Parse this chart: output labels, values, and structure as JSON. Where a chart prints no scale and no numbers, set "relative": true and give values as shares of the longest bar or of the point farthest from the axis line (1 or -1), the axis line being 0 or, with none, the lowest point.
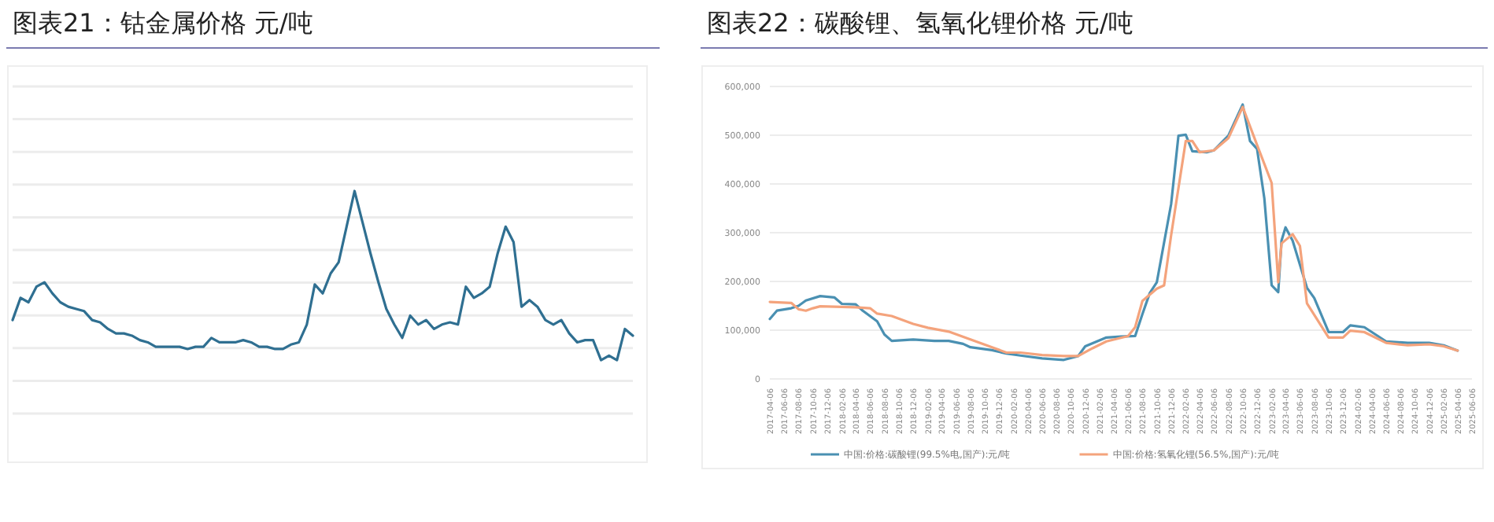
{
  "chart_data": [
    {
      "type": "line",
      "title": "图表21：钴金属价格 元/吨",
      "relative": true,
      "grid": true,
      "categories": [
        null,
        null,
        null,
        null,
        null,
        null,
        null,
        null,
        null,
        null,
        null,
        null,
        null,
        null,
        null,
        null,
        null,
        null,
        null,
        null,
        null,
        null,
        null,
        null,
        null,
        null,
        null,
        null,
        null,
        null,
        null,
        null,
        null,
        null,
        null,
        null,
        null,
        null,
        null,
        null,
        null,
        null,
        null,
        null,
        null,
        null,
        null,
        null,
        null,
        null,
        null,
        null,
        null,
        null,
        null,
        null,
        null,
        null,
        null,
        null,
        null,
        null,
        null,
        null,
        null,
        null,
        null,
        null,
        null,
        null,
        null,
        null,
        null,
        null,
        null,
        null,
        null,
        null,
        null
      ],
      "series": [
        {
          "color": "#2f6f91",
          "values": [
            0.42,
            0.52,
            0.5,
            0.57,
            0.59,
            0.54,
            0.5,
            0.48,
            0.47,
            0.46,
            0.42,
            0.41,
            0.38,
            0.36,
            0.36,
            0.35,
            0.33,
            0.32,
            0.3,
            0.3,
            0.3,
            0.3,
            0.29,
            0.3,
            0.3,
            0.34,
            0.32,
            0.32,
            0.32,
            0.33,
            0.32,
            0.3,
            0.3,
            0.29,
            0.29,
            0.31,
            0.32,
            0.4,
            0.58,
            0.54,
            0.63,
            0.68,
            0.84,
            1.0,
            0.86,
            0.72,
            0.59,
            0.47,
            0.4,
            0.34,
            0.44,
            0.4,
            0.42,
            0.38,
            0.4,
            0.41,
            0.4,
            0.57,
            0.52,
            0.54,
            0.57,
            0.72,
            0.84,
            0.77,
            0.48,
            0.51,
            0.48,
            0.42,
            0.4,
            0.42,
            0.36,
            0.32,
            0.33,
            0.33,
            0.24,
            0.26,
            0.24,
            0.38,
            0.35
          ]
        }
      ]
    },
    {
      "type": "line",
      "title": "图表22：碳酸锂、氢氧化锂价格 元/吨",
      "grid": "y",
      "legend": "bottom",
      "xlim": [
        "2017-04-06",
        "2025-06-06"
      ],
      "xticks": [
        "2017-04-06",
        "2017-06-06",
        "2017-08-06",
        "2017-10-06",
        "2017-12-06",
        "2018-02-06",
        "2018-04-06",
        "2018-06-06",
        "2018-08-06",
        "2018-10-06",
        "2018-12-06",
        "2019-02-06",
        "2019-04-06",
        "2019-06-06",
        "2019-08-06",
        "2019-10-06",
        "2019-12-06",
        "2020-02-06",
        "2020-04-06",
        "2020-06-06",
        "2020-08-06",
        "2020-10-06",
        "2020-12-06",
        "2021-02-06",
        "2021-04-06",
        "2021-06-06",
        "2021-08-06",
        "2021-10-06",
        "2021-12-06",
        "2022-02-06",
        "2022-04-06",
        "2022-06-06",
        "2022-08-06",
        "2022-10-06",
        "2022-12-06",
        "2023-02-06",
        "2023-04-06",
        "2023-06-06",
        "2023-08-06",
        "2023-10-06",
        "2023-12-06",
        "2024-02-06",
        "2024-04-06",
        "2024-06-06",
        "2024-08-06",
        "2024-10-06",
        "2024-12-06",
        "2025-02-06",
        "2025-04-06",
        "2025-06-06"
      ],
      "ylim": [
        0,
        600000
      ],
      "yticks": [
        0,
        {
          "value": 100000,
          "label": "100,000"
        },
        {
          "value": 200000,
          "label": "200,000"
        },
        {
          "value": 300000,
          "label": "300,000"
        },
        {
          "value": 400000,
          "label": "400,000"
        },
        {
          "value": 500000,
          "label": "500,000"
        },
        {
          "value": 600000,
          "label": "600,000"
        }
      ],
      "series": [
        {
          "name": "中国:价格:碳酸锂(99.5%电,国产):元/吨",
          "color": "#4a90b2",
          "x": [
            "2017-04-06",
            "2017-05-06",
            "2017-07-06",
            "2017-08-06",
            "2017-09-06",
            "2017-11-06",
            "2018-01-06",
            "2018-02-06",
            "2018-04-06",
            "2018-05-06",
            "2018-07-06",
            "2018-08-06",
            "2018-09-06",
            "2018-12-06",
            "2019-03-06",
            "2019-05-06",
            "2019-07-06",
            "2019-08-06",
            "2019-11-06",
            "2020-01-06",
            "2020-03-06",
            "2020-06-06",
            "2020-09-06",
            "2020-11-06",
            "2020-12-06",
            "2021-03-06",
            "2021-05-06",
            "2021-07-06",
            "2021-08-06",
            "2021-09-06",
            "2021-10-06",
            "2021-12-06",
            "2022-01-06",
            "2022-02-06",
            "2022-03-06",
            "2022-05-06",
            "2022-06-06",
            "2022-08-06",
            "2022-10-06",
            "2022-11-06",
            "2022-12-06",
            "2023-01-06",
            "2023-02-06",
            "2023-03-06",
            "2023-03-20",
            "2023-04-06",
            "2023-05-06",
            "2023-07-06",
            "2023-08-06",
            "2023-10-06",
            "2023-12-06",
            "2024-01-06",
            "2024-03-06",
            "2024-06-06",
            "2024-09-06",
            "2024-12-06",
            "2025-02-06",
            "2025-04-06"
          ],
          "values": [
            123000,
            140000,
            145000,
            150000,
            161000,
            170000,
            167000,
            154000,
            153000,
            140000,
            118000,
            91000,
            78000,
            81000,
            78000,
            78000,
            72000,
            65000,
            59000,
            52000,
            48000,
            42000,
            39000,
            47000,
            67000,
            85000,
            87000,
            88000,
            133000,
            176000,
            198000,
            359000,
            499000,
            501000,
            467000,
            465000,
            469000,
            499000,
            563000,
            488000,
            472000,
            370000,
            192000,
            178000,
            284000,
            311000,
            284000,
            187000,
            166000,
            96000,
            96000,
            110000,
            106000,
            77000,
            74000,
            74000,
            69000,
            58000
          ]
        },
        {
          "name": "中国:价格:氢氧化锂(56.5%,国产):元/吨",
          "color": "#f4a37c",
          "x": [
            "2017-04-06",
            "2017-07-06",
            "2017-08-06",
            "2017-09-06",
            "2017-10-06",
            "2017-11-06",
            "2018-04-06",
            "2018-06-06",
            "2018-07-06",
            "2018-09-06",
            "2018-12-06",
            "2019-02-06",
            "2019-05-06",
            "2019-08-06",
            "2019-11-06",
            "2020-01-06",
            "2020-03-06",
            "2020-06-06",
            "2020-09-06",
            "2020-11-06",
            "2021-01-06",
            "2021-03-06",
            "2021-06-06",
            "2021-07-06",
            "2021-08-06",
            "2021-10-06",
            "2021-11-06",
            "2021-12-06",
            "2022-02-06",
            "2022-03-06",
            "2022-04-06",
            "2022-06-06",
            "2022-08-06",
            "2022-10-06",
            "2022-12-06",
            "2023-02-06",
            "2023-03-06",
            "2023-03-20",
            "2023-05-06",
            "2023-06-06",
            "2023-07-06",
            "2023-10-06",
            "2023-12-06",
            "2024-01-06",
            "2024-03-06",
            "2024-06-06",
            "2024-09-06",
            "2024-12-06",
            "2025-02-06",
            "2025-04-06"
          ],
          "values": [
            158000,
            156000,
            143000,
            140000,
            145000,
            149000,
            147000,
            145000,
            134000,
            129000,
            113000,
            105000,
            97000,
            81000,
            65000,
            54000,
            54000,
            49000,
            47000,
            47000,
            63000,
            77000,
            88000,
            106000,
            160000,
            185000,
            192000,
            295000,
            488000,
            488000,
            465000,
            469000,
            494000,
            558000,
            480000,
            402000,
            198000,
            278000,
            297000,
            273000,
            155000,
            85000,
            85000,
            99000,
            96000,
            74000,
            69000,
            71000,
            67000,
            58000
          ]
        }
      ]
    }
  ]
}
